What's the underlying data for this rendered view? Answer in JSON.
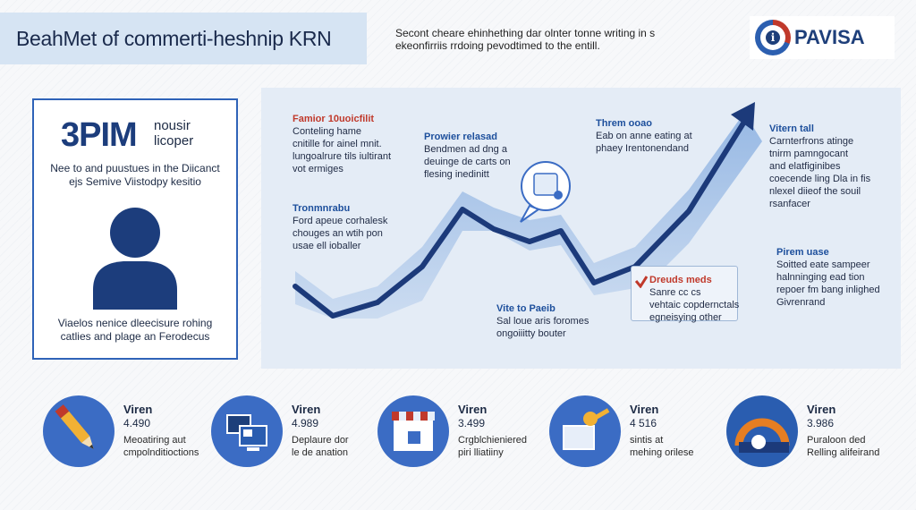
{
  "header": {
    "title": "BeahMet of commerti-heshnip KRN",
    "subtitle_lines": [
      "Secont cheare ehinhething dar olnter tonne writing in s",
      "ekeonfirriis rrdoing pevodtimed to the entill."
    ]
  },
  "logo": {
    "mark": "i",
    "text": "PAVISA"
  },
  "profile_card": {
    "big_number": "3PIM",
    "big_caption_lines": [
      "nousir",
      "licoper"
    ],
    "line1": "Nee to and puustues in the Diicanct",
    "line2": "ejs Semive Viistodpy kesitio",
    "avatar_icon": "person-silhouette-icon",
    "footer_lines": [
      "Viaelos nenice dleecisure rohing",
      "catlies and plage an Ferodecus"
    ]
  },
  "chart": {
    "annotations": [
      {
        "lines": [
          "Famior 10uoicfilit",
          "Conteling hame",
          "cnitille for ainel mnit.",
          "lungoalrure tils iultirant",
          "vot ermiges"
        ],
        "head_color": "#c0392b"
      },
      {
        "lines": [
          "Tronmnrabu",
          "Ford apeue corhalesk",
          "chouges an wtih pon",
          "usae ell ioballer"
        ],
        "head_color": "#1d4f9c"
      },
      {
        "lines": [
          "Prowier relasad",
          "Bendmen ad dng a",
          "deuinge de carts on",
          "flesing inedinitt"
        ],
        "head_color": "#1d4f9c"
      },
      {
        "lines": [
          "Threm ooao",
          "Eab on anne eating at",
          "phaey Irentonendand"
        ],
        "head_color": "#1d4f9c"
      },
      {
        "lines": [
          "Vitern tall",
          "Carnterfrons atinge",
          "tnirm pamngocant",
          "and elatfiginibes",
          "coecende ling Dla in fis",
          "nlexel diieof the souil",
          "rsanfacer"
        ],
        "head_color": "#1d4f9c"
      },
      {
        "lines": [
          "Vite to Paeib",
          "Sal loue aris foromes",
          "ongoiiitty bouter"
        ],
        "head_color": "#1d4f9c"
      },
      {
        "lines": [
          "Pirem uase",
          "Soitted eate sampeer",
          "halnninging ead tion",
          "repoer fm bang inlighed",
          "Givrenrand"
        ],
        "head_color": "#1d4f9c"
      },
      {
        "lines": [
          "Dreuds meds",
          "Sanre cc cs",
          "vehtaic copdernctals",
          "egneisying other"
        ],
        "head_color": "#c0392b"
      }
    ],
    "line_color": "#1c3a7a",
    "area_color": "#a9c4e8",
    "bubble_icon": "chat-bubble-icon",
    "callout_icon": "check-mark-icon"
  },
  "stats": [
    {
      "title": "Viren",
      "value": "4.490",
      "desc_lines": [
        "Meoatiring aut",
        "cmpolnditioctions"
      ],
      "icon": "pencil-icon"
    },
    {
      "title": "Viren",
      "value": "4.989",
      "desc_lines": [
        "Deplaure dor",
        "le de anation"
      ],
      "icon": "computer-screens-icon"
    },
    {
      "title": "Viren",
      "value": "3.499",
      "desc_lines": [
        "Crgblchieniered",
        "piri lliatiiny"
      ],
      "icon": "storefront-icon"
    },
    {
      "title": "Viren",
      "value": "4 516",
      "desc_lines": [
        "sintis at",
        "mehing orilese"
      ],
      "icon": "key-document-icon"
    },
    {
      "title": "Viren",
      "value": "3.986",
      "desc_lines": [
        "Puraloon ded",
        "Relling alifeirand"
      ],
      "icon": "gauge-icon"
    }
  ]
}
